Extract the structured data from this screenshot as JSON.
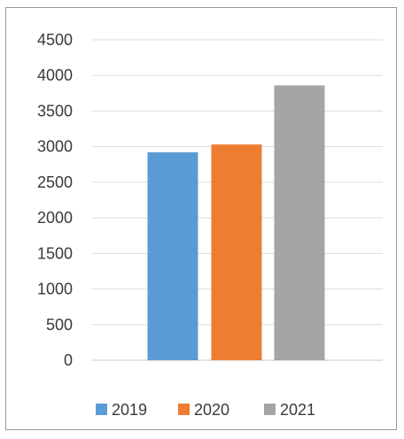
{
  "chart_data": {
    "type": "bar",
    "categories": [
      "2019",
      "2020",
      "2021"
    ],
    "values": [
      2920,
      3030,
      3860
    ],
    "series": [
      {
        "name": "2019",
        "value": 2920,
        "color": "#5b9bd5"
      },
      {
        "name": "2020",
        "value": 3030,
        "color": "#ed7d31"
      },
      {
        "name": "2021",
        "value": 3860,
        "color": "#a5a5a5"
      }
    ],
    "ylim": [
      0,
      4500
    ],
    "yticks": [
      0,
      500,
      1000,
      1500,
      2000,
      2500,
      3000,
      3500,
      4000,
      4500
    ],
    "grid": true,
    "legend": "bottom",
    "title": "",
    "xlabel": "",
    "ylabel": ""
  }
}
